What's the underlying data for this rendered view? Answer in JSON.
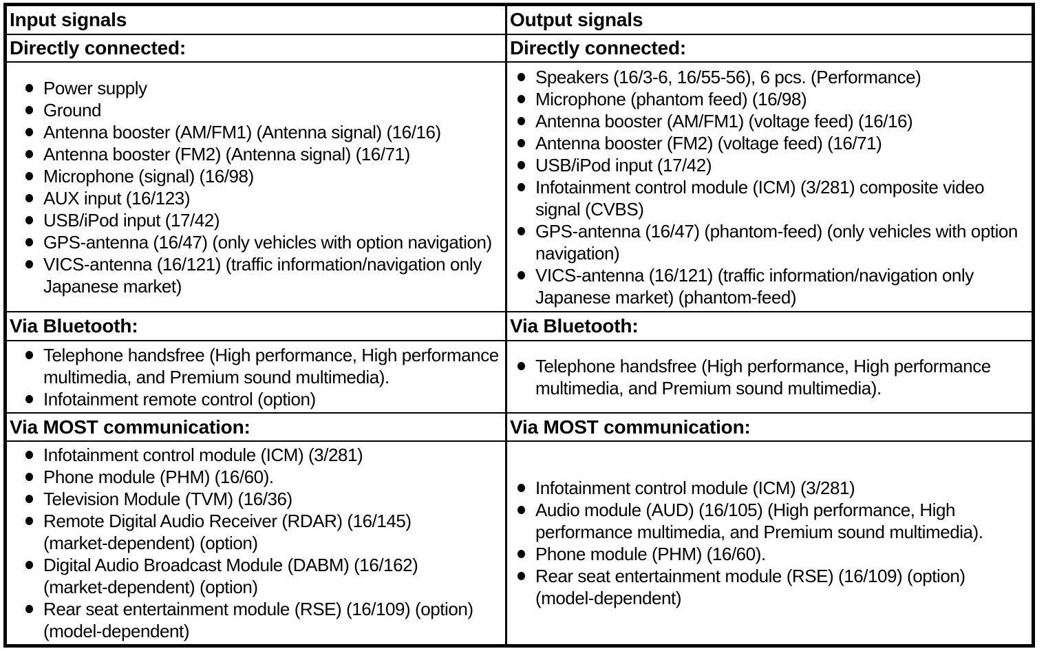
{
  "page": {
    "background_color": "#ffffff",
    "border_color": "#000000",
    "text_color": "#000000"
  },
  "table": {
    "columns": [
      {
        "header": "Input signals",
        "sections": [
          {
            "label": "Directly connected:",
            "items": [
              [
                "Power supply"
              ],
              [
                "Ground"
              ],
              [
                "Antenna booster (AM/FM1) (Antenna signal) (16/16)"
              ],
              [
                "Antenna booster (FM2) (Antenna signal) (16/71)"
              ],
              [
                "Microphone (signal) (16/98)"
              ],
              [
                "AUX input (16/123)"
              ],
              [
                "USB/iPod input (17/42)"
              ],
              [
                "GPS-antenna (16/47) (only vehicles with option navigation)"
              ],
              [
                "VICS-antenna (16/121) (traffic information/navigation only",
                "Japanese market)"
              ]
            ]
          },
          {
            "label": "Via Bluetooth:",
            "items": [
              [
                "Telephone handsfree (High performance, High performance",
                "multimedia, and Premium sound multimedia)."
              ],
              [
                "Infotainment remote control (option)"
              ]
            ]
          },
          {
            "label": "Via MOST communication:",
            "items": [
              [
                "Infotainment control module (ICM) (3/281)"
              ],
              [
                "Phone module (PHM) (16/60)."
              ],
              [
                "Television Module (TVM) (16/36)"
              ],
              [
                "Remote Digital Audio Receiver (RDAR) (16/145)",
                "(market-dependent) (option)"
              ],
              [
                "Digital Audio Broadcast Module (DABM) (16/162)",
                "(market-dependent) (option)"
              ],
              [
                "Rear seat entertainment module (RSE) (16/109) (option)",
                "(model-dependent)"
              ]
            ]
          }
        ]
      },
      {
        "header": "Output signals",
        "sections": [
          {
            "label": "Directly connected:",
            "items": [
              [
                "Speakers (16/3-6, 16/55-56), 6 pcs. (Performance)"
              ],
              [
                "Microphone (phantom feed) (16/98)"
              ],
              [
                "Antenna booster (AM/FM1) (voltage feed) (16/16)"
              ],
              [
                "Antenna booster (FM2) (voltage feed) (16/71)"
              ],
              [
                "USB/iPod input (17/42)"
              ],
              [
                "Infotainment control module (ICM) (3/281) composite video",
                "signal (CVBS)"
              ],
              [
                "GPS-antenna (16/47) (phantom-feed) (only vehicles with option",
                "navigation)"
              ],
              [
                "VICS-antenna (16/121) (traffic information/navigation only",
                "Japanese market) (phantom-feed)"
              ]
            ]
          },
          {
            "label": "Via Bluetooth:",
            "items": [
              [
                "Telephone handsfree (High performance, High performance",
                "multimedia, and Premium sound multimedia)."
              ]
            ]
          },
          {
            "label": "Via MOST communication:",
            "items": [
              [
                "Infotainment control module (ICM) (3/281)"
              ],
              [
                "Audio module (AUD) (16/105) (High performance, High",
                "performance multimedia, and Premium sound multimedia)."
              ],
              [
                "Phone module (PHM) (16/60)."
              ],
              [
                "Rear seat entertainment module (RSE) (16/109) (option)",
                "(model-dependent)"
              ]
            ]
          }
        ]
      }
    ]
  }
}
